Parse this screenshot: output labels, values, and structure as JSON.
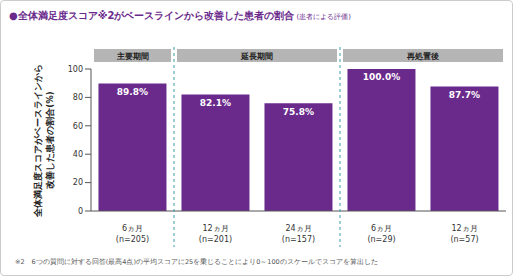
{
  "chart_data": {
    "type": "bar",
    "title": "●全体満足度スコア※2がベースラインから改善した患者の割合",
    "subtitle": "(患者による評価)",
    "ylabel": [
      "全体満足度スコアがベースラインから",
      "改善した患者の割合(%)"
    ],
    "categories": [
      "6ヵ月",
      "12ヵ月",
      "24ヵ月",
      "6ヵ月",
      "12ヵ月"
    ],
    "n_labels": [
      "(n=205)",
      "(n=201)",
      "(n=157)",
      "(n=29)",
      "(n=57)"
    ],
    "groups": [
      "主要期間",
      "延長期間",
      "延長期間",
      "再処置後",
      "再処置後"
    ],
    "values": [
      89.8,
      82.1,
      75.8,
      100.0,
      87.7
    ],
    "value_labels": [
      "89.8%",
      "82.1%",
      "75.8%",
      "100.0%",
      "87.7%"
    ],
    "data_labels": true,
    "color": "#6a2a8c",
    "ylim": [
      0,
      100
    ],
    "yticks": [
      0,
      20,
      40,
      60,
      80,
      100
    ],
    "grid": false,
    "footnote": "※2　6つの質問に対する回答(最高4点)の平均スコアに25を乗じることにより0～100のスケールでスコアを算出した"
  }
}
